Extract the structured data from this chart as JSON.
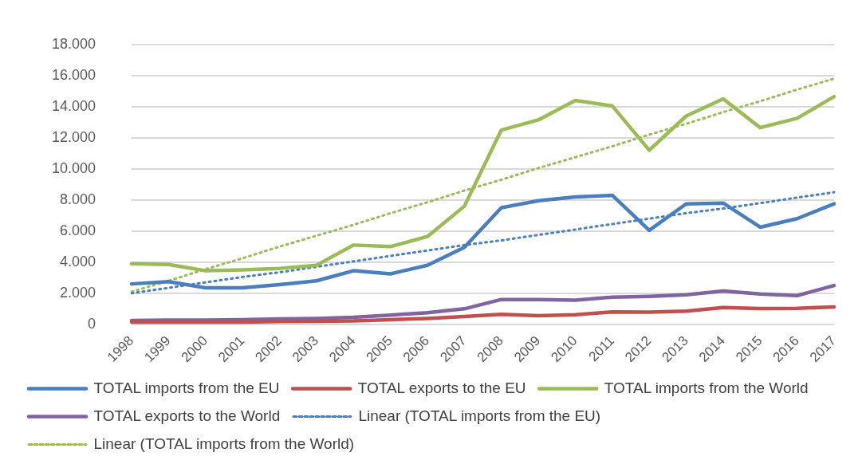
{
  "chart_data": {
    "type": "line",
    "categories": [
      "1998",
      "1999",
      "2000",
      "2001",
      "2002",
      "2003",
      "2004",
      "2005",
      "2006",
      "2007",
      "2008",
      "2009",
      "2010",
      "2011",
      "2012",
      "2013",
      "2014",
      "2015",
      "2016",
      "2017"
    ],
    "series": [
      {
        "name": "TOTAL imports from the EU",
        "color": "#4a7ebf",
        "values": [
          2600,
          2750,
          2350,
          2350,
          2550,
          2800,
          3450,
          3250,
          3800,
          4950,
          7500,
          7950,
          8200,
          8300,
          6050,
          7750,
          7800,
          6250,
          6800,
          7750
        ]
      },
      {
        "name": "TOTAL exports to the EU",
        "color": "#c0504d",
        "values": [
          150,
          150,
          150,
          150,
          180,
          200,
          220,
          300,
          380,
          500,
          650,
          550,
          620,
          800,
          780,
          850,
          1080,
          1020,
          1030,
          1120
        ]
      },
      {
        "name": "TOTAL imports from the World",
        "color": "#9bbb59",
        "values": [
          3900,
          3850,
          3450,
          3500,
          3600,
          3800,
          5100,
          5000,
          5650,
          7600,
          12500,
          13150,
          14400,
          14050,
          11200,
          13400,
          14500,
          12650,
          13250,
          14650
        ]
      },
      {
        "name": "TOTAL exports to the World",
        "color": "#8064a2",
        "values": [
          250,
          270,
          270,
          300,
          350,
          380,
          450,
          600,
          750,
          1000,
          1600,
          1600,
          1550,
          1750,
          1800,
          1900,
          2150,
          1950,
          1850,
          2500
        ]
      },
      {
        "name": "Linear (TOTAL imports from the EU)",
        "color": "#4a7ebf",
        "line_style": "dotted",
        "values": [
          2000,
          2350,
          2700,
          3050,
          3350,
          3700,
          4050,
          4400,
          4750,
          5100,
          5400,
          5750,
          6100,
          6450,
          6800,
          7150,
          7450,
          7800,
          8150,
          8500
        ]
      },
      {
        "name": "Linear (TOTAL imports from the World)",
        "color": "#9bbb59",
        "line_style": "dotted",
        "values": [
          2100,
          2800,
          3550,
          4250,
          5000,
          5700,
          6400,
          7150,
          7850,
          8600,
          9300,
          10050,
          10750,
          11450,
          12200,
          12900,
          13650,
          14350,
          15100,
          15800
        ]
      }
    ],
    "ylim": [
      0,
      18000
    ],
    "yticks": [
      0,
      {
        "value": 2000,
        "label": "2.000"
      },
      {
        "value": 4000,
        "label": "4.000"
      },
      {
        "value": 6000,
        "label": "6.000"
      },
      {
        "value": 8000,
        "label": "8.000"
      },
      {
        "value": 10000,
        "label": "10.000"
      },
      {
        "value": 12000,
        "label": "12.000"
      },
      {
        "value": 14000,
        "label": "14.000"
      },
      {
        "value": 16000,
        "label": "16.000"
      },
      {
        "value": 18000,
        "label": "18.000"
      }
    ],
    "grid": "y",
    "legend": "bottom",
    "marker": "none",
    "line_style": "solid"
  }
}
